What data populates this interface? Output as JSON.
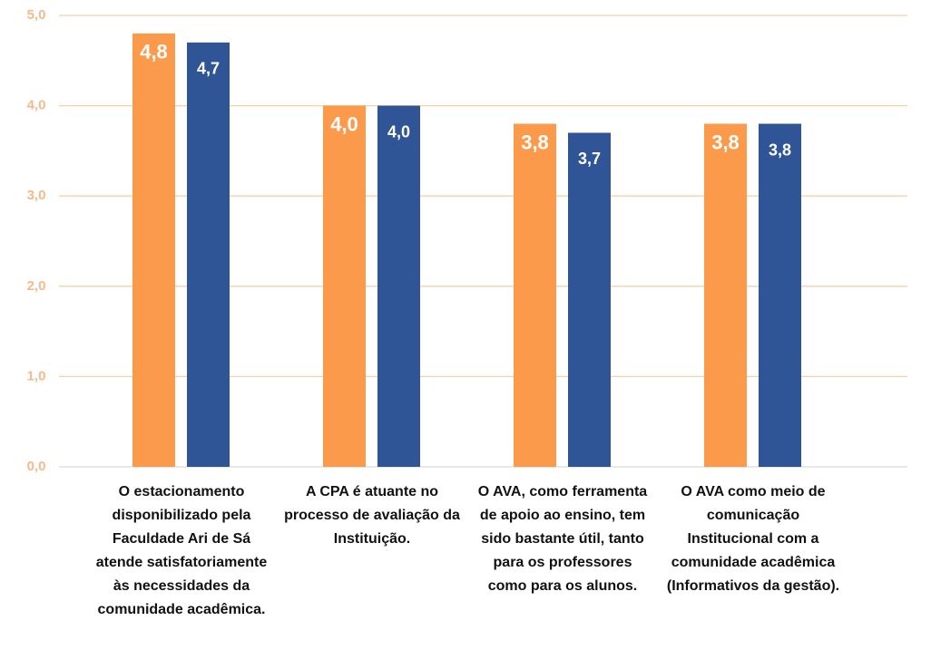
{
  "chart_data": {
    "type": "bar",
    "categories": [
      "O estacionamento disponibilizado pela Faculdade Ari de Sá atende satisfatoriamente às necessidades da comunidade acadêmica.",
      "A CPA é atuante no processo de avaliação da Instituição.",
      "O AVA, como ferramenta de apoio ao ensino, tem sido bastante útil, tanto para os professores como para os alunos.",
      "O AVA como meio de comunicação Institucional com a comunidade acadêmica (Informativos da gestão)."
    ],
    "series": [
      {
        "color": "#fb9a4b",
        "values": [
          4.8,
          4.0,
          3.8,
          3.8
        ],
        "value_labels": [
          "4,8",
          "4,0",
          "3,8",
          "3,8"
        ]
      },
      {
        "color": "#2f5597",
        "values": [
          4.7,
          4.0,
          3.7,
          3.8
        ],
        "value_labels": [
          "4,7",
          "4,0",
          "3,7",
          "3,8"
        ]
      }
    ],
    "ylim": [
      0,
      5
    ],
    "yticks": [
      {
        "value": 0,
        "label": "0,0"
      },
      {
        "value": 1,
        "label": "1,0"
      },
      {
        "value": 2,
        "label": "2,0"
      },
      {
        "value": 3,
        "label": "3,0"
      },
      {
        "value": 4,
        "label": "4,0"
      },
      {
        "value": 5,
        "label": "5,0"
      }
    ],
    "grid": true
  }
}
